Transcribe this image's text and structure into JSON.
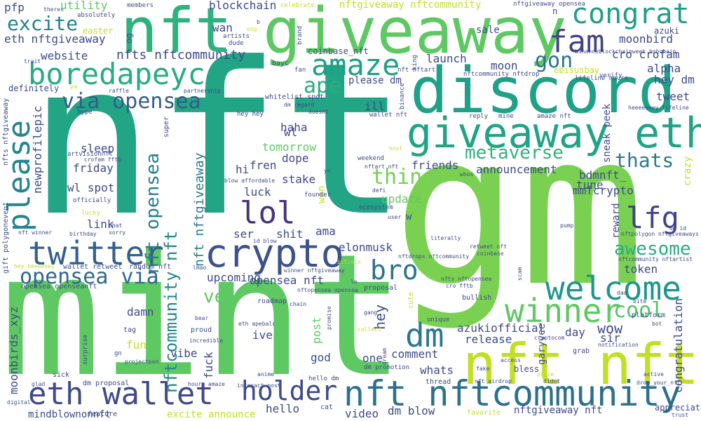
{
  "words": [
    {
      "text": "nft",
      "color": "#21a585"
    },
    {
      "text": "gm",
      "color": "#7ad151"
    },
    {
      "text": "mint",
      "color": "#5ec962"
    },
    {
      "text": "giveaway",
      "color": "#5ec962"
    },
    {
      "text": "discord",
      "color": "#1fa187"
    },
    {
      "text": "nft",
      "color": "#2db27d"
    },
    {
      "text": "giveaway eth",
      "color": "#20a486"
    },
    {
      "text": "nft nft",
      "color": "#c2df23"
    },
    {
      "text": "congrat",
      "color": "#1f9e89"
    },
    {
      "text": "boredapeyc",
      "color": "#27ad81"
    },
    {
      "text": "crypto",
      "color": "#3b528b"
    },
    {
      "text": "eth wallet",
      "color": "#3e4a89"
    },
    {
      "text": "nft nftcommunity",
      "color": "#2d708e"
    },
    {
      "text": "twitter",
      "color": "#355f8d"
    },
    {
      "text": "welcome",
      "color": "#1f968b"
    },
    {
      "text": "winner",
      "color": "#5ec962"
    },
    {
      "text": "fam",
      "color": "#414487"
    },
    {
      "text": "amaze",
      "color": "#1fa187"
    },
    {
      "text": "lol",
      "color": "#46337e"
    },
    {
      "text": "lfg",
      "color": "#414487"
    },
    {
      "text": "via opensea",
      "color": "#365c8d"
    },
    {
      "text": "please",
      "color": "#25848e"
    },
    {
      "text": "holder",
      "color": "#3e4a89"
    },
    {
      "text": "dm",
      "color": "#2a788e"
    },
    {
      "text": "bro",
      "color": "#2c728e"
    },
    {
      "text": "opensea via",
      "color": "#31688e"
    },
    {
      "text": "excite",
      "color": "#26828e"
    },
    {
      "text": "ape",
      "color": "#28ae80"
    },
    {
      "text": "cool",
      "color": "#52c569"
    },
    {
      "text": "awesome",
      "color": "#27ad81"
    },
    {
      "text": "thats",
      "color": "#287c8e"
    },
    {
      "text": "metaverse",
      "color": "#2fb47c"
    },
    {
      "text": "thing",
      "color": "#75d054"
    },
    {
      "text": "gon",
      "color": "#2c728e"
    },
    {
      "text": "nft opensea",
      "color": "#277f8e"
    },
    {
      "text": "nftcommunity nft",
      "color": "#23898e"
    },
    {
      "text": "nft nftgiveaway",
      "color": "#2a788e"
    },
    {
      "text": "moonbirds_xyz",
      "color": "#3e4a89"
    },
    {
      "text": "holder",
      "color": "#3e4a89"
    },
    {
      "text": "website",
      "color": "#3e4a89"
    },
    {
      "text": "nfts nftcommunity",
      "color": "#3e4a89"
    },
    {
      "text": "launch",
      "color": "#3e4a89"
    },
    {
      "text": "moon",
      "color": "#3e4a89"
    },
    {
      "text": "cro crofam",
      "color": "#3e4a89"
    },
    {
      "text": "moonbird",
      "color": "#3e4a89"
    },
    {
      "text": "alpha",
      "color": "#3e4a89"
    },
    {
      "text": "hey dm",
      "color": "#3e4a89"
    },
    {
      "text": "tweet",
      "color": "#3e4a89"
    },
    {
      "text": "blockchain",
      "color": "#3e4a89"
    },
    {
      "text": "pfp",
      "color": "#3e4a89"
    },
    {
      "text": "utility",
      "color": "#5ec962"
    },
    {
      "text": "nftgiveaway nftcommunity",
      "color": "#c2df23"
    },
    {
      "text": "sale",
      "color": "#3e4a89"
    },
    {
      "text": "eth nftgiveaway",
      "color": "#3e4a89"
    },
    {
      "text": "wan",
      "color": "#3e4a89"
    },
    {
      "text": "azuki",
      "color": "#3e4a89"
    },
    {
      "text": "ebisusbay",
      "color": "#c2df23"
    },
    {
      "text": "newprofilepic",
      "color": "#3e4a89"
    },
    {
      "text": "haha",
      "color": "#3e4a89"
    },
    {
      "text": "ill",
      "color": "#3e4a89"
    },
    {
      "text": "wl",
      "color": "#3e4a89"
    },
    {
      "text": "sleep",
      "color": "#3e4a89"
    },
    {
      "text": "friday",
      "color": "#3e4a89"
    },
    {
      "text": "wl spot",
      "color": "#3e4a89"
    },
    {
      "text": "link",
      "color": "#3e4a89"
    },
    {
      "text": "hi",
      "color": "#3e4a89"
    },
    {
      "text": "fren",
      "color": "#3e4a89"
    },
    {
      "text": "tomorrow",
      "color": "#5ec962"
    },
    {
      "text": "dope",
      "color": "#3e4a89"
    },
    {
      "text": "stake",
      "color": "#3e4a89"
    },
    {
      "text": "luck",
      "color": "#3e4a89"
    },
    {
      "text": "friends",
      "color": "#3e4a89"
    },
    {
      "text": "announcement",
      "color": "#3e4a89"
    },
    {
      "text": "update",
      "color": "#5ec962"
    },
    {
      "text": "tune",
      "color": "#3e4a89"
    },
    {
      "text": "bdmnft_",
      "color": "#3e4a89"
    },
    {
      "text": "mmfcrypto",
      "color": "#3e4a89"
    },
    {
      "text": "reward",
      "color": "#3e4a89"
    },
    {
      "text": "crazy",
      "color": "#c2df23"
    },
    {
      "text": "sneak peek",
      "color": "#3e4a89"
    },
    {
      "text": "ser",
      "color": "#3e4a89"
    },
    {
      "text": "shit",
      "color": "#3e4a89"
    },
    {
      "text": "ama",
      "color": "#3e4a89"
    },
    {
      "text": "elonmusk",
      "color": "#3e4a89"
    },
    {
      "text": "upcoming",
      "color": "#3e4a89"
    },
    {
      "text": "ve",
      "color": "#5ec962"
    },
    {
      "text": "opensea nft",
      "color": "#3e4a89"
    },
    {
      "text": "token",
      "color": "#3e4a89"
    },
    {
      "text": "congratulation",
      "color": "#3e4a89"
    },
    {
      "text": "hey",
      "color": "#3e4a89"
    },
    {
      "text": "post",
      "color": "#5ec962"
    },
    {
      "text": "fuck",
      "color": "#3e4a89"
    },
    {
      "text": "damn",
      "color": "#3e4a89"
    },
    {
      "text": "fun",
      "color": "#c2df23"
    },
    {
      "text": "vibe",
      "color": "#3e4a89"
    },
    {
      "text": "ive",
      "color": "#3e4a89"
    },
    {
      "text": "azukiofficial",
      "color": "#3e4a89"
    },
    {
      "text": "release",
      "color": "#3e4a89"
    },
    {
      "text": "day",
      "color": "#3e4a89"
    },
    {
      "text": "wow",
      "color": "#3e4a89"
    },
    {
      "text": "sir",
      "color": "#3e4a89"
    },
    {
      "text": "comment",
      "color": "#3e4a89"
    },
    {
      "text": "whats",
      "color": "#3e4a89"
    },
    {
      "text": "one",
      "color": "#3e4a89"
    },
    {
      "text": "god",
      "color": "#3e4a89"
    },
    {
      "text": "dm blow",
      "color": "#3e4a89"
    },
    {
      "text": "hello",
      "color": "#3e4a89"
    },
    {
      "text": "video",
      "color": "#3e4a89"
    },
    {
      "text": "nftgiveaway nft",
      "color": "#3e4a89"
    },
    {
      "text": "garyvee",
      "color": "#3e4a89"
    },
    {
      "text": "appreciate",
      "color": "#3e4a89"
    },
    {
      "text": "mindblownonnft",
      "color": "#3e4a89"
    },
    {
      "text": "excite announce",
      "color": "#c2df23"
    },
    {
      "text": "wen",
      "color": "#c2df23"
    },
    {
      "text": "easter",
      "color": "#c2df23"
    },
    {
      "text": "og",
      "color": "#3e4a89"
    },
    {
      "text": "please dm",
      "color": "#3e4a89"
    },
    {
      "text": "coinbase_nft",
      "color": "#3e4a89"
    },
    {
      "text": "definitely",
      "color": "#3e4a89"
    },
    {
      "text": "n",
      "color": "#3e4a89"
    },
    {
      "text": "favorite",
      "color": "#c2df23"
    },
    {
      "text": "w",
      "color": "#3e4a89"
    },
    {
      "text": "roadmap",
      "color": "#3e4a89"
    },
    {
      "text": "cute",
      "color": "#c2df23"
    },
    {
      "text": "thread",
      "color": "#3e4a89"
    },
    {
      "text": "bless",
      "color": "#3e4a89"
    },
    {
      "text": "cat",
      "color": "#3e4a89"
    },
    {
      "text": "sick",
      "color": "#3e4a89"
    },
    {
      "text": "feature",
      "color": "#3e4a89"
    },
    {
      "text": "dm proposal",
      "color": "#3e4a89"
    },
    {
      "text": "proposal",
      "color": "#3e4a89"
    },
    {
      "text": "bullish",
      "color": "#3e4a89"
    },
    {
      "text": "platform",
      "color": "#3e4a89"
    },
    {
      "text": "grab",
      "color": "#3e4a89"
    },
    {
      "text": "gift polygonevent",
      "color": "#3e4a89"
    },
    {
      "text": "nfts nftgiveaway",
      "color": "#3e4a89"
    },
    {
      "text": "wallet retweet",
      "color": "#3e4a89"
    },
    {
      "text": "opensea openseanft",
      "color": "#3e4a89"
    },
    {
      "text": "random nft",
      "color": "#3e4a89"
    },
    {
      "text": "members",
      "color": "#3e4a89"
    },
    {
      "text": "absolutely",
      "color": "#3e4a89"
    },
    {
      "text": "artists",
      "color": "#3e4a89"
    },
    {
      "text": "dude",
      "color": "#3e4a89"
    },
    {
      "text": "brand",
      "color": "#3e4a89"
    },
    {
      "text": "celebrate",
      "color": "#c2df23"
    },
    {
      "text": "nftgiveaway opensea",
      "color": "#3e4a89"
    },
    {
      "text": "binanceblockchainweek bnbchain",
      "color": "#3e4a89"
    },
    {
      "text": "king",
      "color": "#3e4a89"
    },
    {
      "text": "bayc",
      "color": "#3e4a89"
    },
    {
      "text": "verify",
      "color": "#3e4a89"
    },
    {
      "text": "lifeline hours",
      "color": "#3e4a89"
    },
    {
      "text": "fan",
      "color": "#3e4a89"
    },
    {
      "text": "nft nftart",
      "color": "#3e4a89"
    },
    {
      "text": "nftcommunity nftdrop",
      "color": "#3e4a89"
    },
    {
      "text": "partnership",
      "color": "#3e4a89"
    },
    {
      "text": "raffle",
      "color": "#3e4a89"
    },
    {
      "text": "hype",
      "color": "#3e4a89"
    },
    {
      "text": "whitelist spot",
      "color": "#3e4a89"
    },
    {
      "text": "hey hey",
      "color": "#3e4a89"
    },
    {
      "text": "dm regard",
      "color": "#3e4a89"
    },
    {
      "text": "doesnt",
      "color": "#3e4a89"
    },
    {
      "text": "binance",
      "color": "#3e4a89"
    },
    {
      "text": "wallet nft",
      "color": "#3e4a89"
    },
    {
      "text": "mine",
      "color": "#3e4a89"
    },
    {
      "text": "amaze nft",
      "color": "#3e4a89"
    },
    {
      "text": "reply",
      "color": "#3e4a89"
    },
    {
      "text": "heeeeeeey lifeline",
      "color": "#3e4a89"
    },
    {
      "text": "artvisionnft",
      "color": "#3e4a89"
    },
    {
      "text": "crofam fftb",
      "color": "#3e4a89"
    },
    {
      "text": "officially",
      "color": "#3e4a89"
    },
    {
      "text": "lucky",
      "color": "#c2df23"
    },
    {
      "text": "chat",
      "color": "#3e4a89"
    },
    {
      "text": "sorry",
      "color": "#3e4a89"
    },
    {
      "text": "birthday",
      "color": "#3e4a89"
    },
    {
      "text": "nft winner",
      "color": "#3e4a89"
    },
    {
      "text": "super",
      "color": "#3e4a89"
    },
    {
      "text": "blow affordable",
      "color": "#3e4a89"
    },
    {
      "text": "founder",
      "color": "#3e4a89"
    },
    {
      "text": "weekend",
      "color": "#3e4a89"
    },
    {
      "text": "nftart nft",
      "color": "#3e4a89"
    },
    {
      "text": "defi",
      "color": "#3e4a89"
    },
    {
      "text": "ecosystem",
      "color": "#3e4a89"
    },
    {
      "text": "user",
      "color": "#3e4a89"
    },
    {
      "text": "literally",
      "color": "#3e4a89"
    },
    {
      "text": "retweet nft",
      "color": "#3e4a89"
    },
    {
      "text": "coinbase",
      "color": "#3e4a89"
    },
    {
      "text": "pump",
      "color": "#3e4a89"
    },
    {
      "text": "dm id",
      "color": "#3e4a89"
    },
    {
      "text": "nftpolygon nftgiveaways",
      "color": "#3e4a89"
    },
    {
      "text": "nftcommunity nftartist",
      "color": "#3e4a89"
    },
    {
      "text": "id blow",
      "color": "#3e4a89"
    },
    {
      "text": "lmao",
      "color": "#3e4a89"
    },
    {
      "text": "winner nftgiveaway",
      "color": "#3e4a89"
    },
    {
      "text": "bitcoin",
      "color": "#c2df23"
    },
    {
      "text": "nftdrops nftcommunity",
      "color": "#3e4a89"
    },
    {
      "text": "scam",
      "color": "#3e4a89"
    },
    {
      "text": "nfts nftopensea",
      "color": "#3e4a89"
    },
    {
      "text": "cro fftb",
      "color": "#3e4a89"
    },
    {
      "text": "nftopensea opensea",
      "color": "#3e4a89"
    },
    {
      "text": "le",
      "color": "#3e4a89"
    },
    {
      "text": "chain",
      "color": "#3e4a89"
    },
    {
      "text": "gang",
      "color": "#3e4a89"
    },
    {
      "text": "bear",
      "color": "#3e4a89"
    },
    {
      "text": "eth apebalc",
      "color": "#3e4a89"
    },
    {
      "text": "incredible",
      "color": "#3e4a89"
    },
    {
      "text": "dm promotion",
      "color": "#3e4a89"
    },
    {
      "text": "unique",
      "color": "#3e4a89"
    },
    {
      "text": "cryptocom",
      "color": "#3e4a89"
    },
    {
      "text": "bot",
      "color": "#3e4a89"
    },
    {
      "text": "notification",
      "color": "#3e4a89"
    },
    {
      "text": "anime",
      "color": "#3e4a89"
    },
    {
      "text": "interact post",
      "color": "#3e4a89"
    },
    {
      "text": "hello dm",
      "color": "#3e4a89"
    },
    {
      "text": "dream",
      "color": "#3e4a89"
    },
    {
      "text": "access",
      "color": "#3e4a89"
    },
    {
      "text": "didnt",
      "color": "#3e4a89"
    },
    {
      "text": "active",
      "color": "#3e4a89"
    },
    {
      "text": "drop_your_nft_",
      "color": "#3e4a89"
    },
    {
      "text": "nft airdrop",
      "color": "#3e4a89"
    },
    {
      "text": "prize",
      "color": "#c2df23"
    },
    {
      "text": "fake",
      "color": "#3e4a89"
    },
    {
      "text": "hours amaze",
      "color": "#3e4a89"
    },
    {
      "text": "projectpxn",
      "color": "#3e4a89"
    },
    {
      "text": "glad",
      "color": "#3e4a89"
    },
    {
      "text": "digital",
      "color": "#3e4a89"
    },
    {
      "text": "trust",
      "color": "#3e4a89"
    },
    {
      "text": "surprise",
      "color": "#3e4a89"
    },
    {
      "text": "gn",
      "color": "#3e4a89"
    },
    {
      "text": "proud",
      "color": "#3e4a89"
    },
    {
      "text": "tag",
      "color": "#3e4a89"
    },
    {
      "text": "bite",
      "color": "#3e4a89"
    },
    {
      "text": "dao",
      "color": "#3e4a89"
    },
    {
      "text": "hey heeeeeey",
      "color": "#c2df23"
    },
    {
      "text": "theres",
      "color": "#3e4a89"
    },
    {
      "text": "b",
      "color": "#3e4a89"
    },
    {
      "text": "ong",
      "color": "#c2df23"
    },
    {
      "text": "yo",
      "color": "#3e4a89"
    },
    {
      "text": "host",
      "color": "#c2df23"
    },
    {
      "text": "whos",
      "color": "#3e4a89"
    },
    {
      "text": "collect",
      "color": "#c2df23"
    },
    {
      "text": "promise",
      "color": "#3e4a89"
    },
    {
      "text": "trait",
      "color": "#3e4a89"
    },
    {
      "text": "ya",
      "color": "#c2df23"
    }
  ]
}
